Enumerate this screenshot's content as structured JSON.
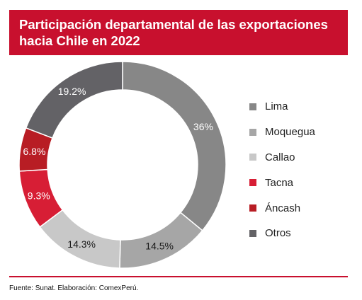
{
  "title": "Participación departamental de las exportaciones hacia Chile en 2022",
  "source": "Fuente: Sunat. Elaboración: ComexPerú.",
  "colors": {
    "accent": "#c8102e"
  },
  "chart_data": {
    "type": "pie",
    "donut": true,
    "title": "Participación departamental de las exportaciones hacia Chile en 2022",
    "legend_position": "right",
    "series": [
      {
        "name": "Lima",
        "value": 36,
        "label": "36%",
        "color": "#878787",
        "label_color": "#ffffff"
      },
      {
        "name": "Moquegua",
        "value": 14.5,
        "label": "14.5%",
        "color": "#a6a6a6",
        "label_color": "#1a1a1a"
      },
      {
        "name": "Callao",
        "value": 14.3,
        "label": "14.3%",
        "color": "#c8c8c8",
        "label_color": "#1a1a1a"
      },
      {
        "name": "Tacna",
        "value": 9.3,
        "label": "9.3%",
        "color": "#d71e35",
        "label_color": "#ffffff"
      },
      {
        "name": "Áncash",
        "value": 6.8,
        "label": "6.8%",
        "color": "#b81d24",
        "label_color": "#ffffff"
      },
      {
        "name": "Otros",
        "value": 19.2,
        "label": "19.2%",
        "color": "#636266",
        "label_color": "#ffffff"
      }
    ]
  }
}
